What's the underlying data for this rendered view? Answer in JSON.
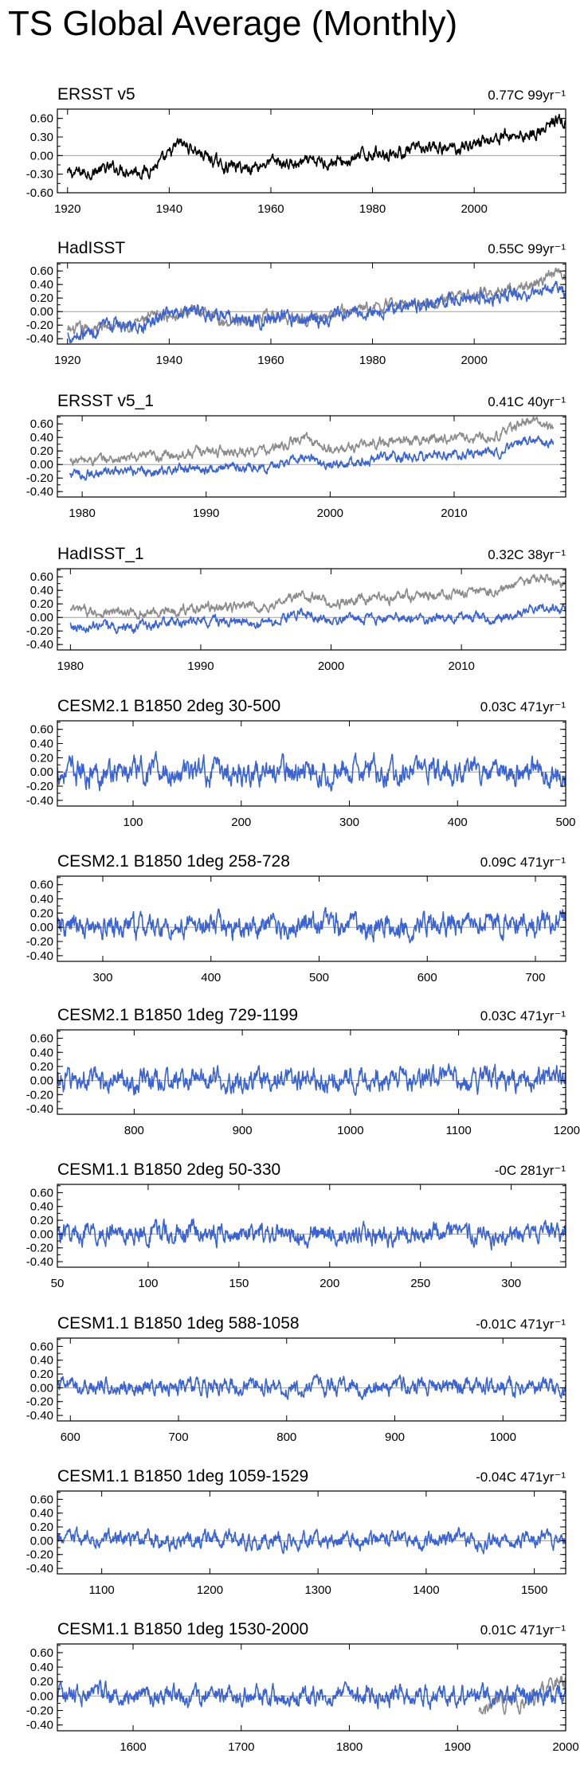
{
  "page": {
    "title": "TS Global Average (Monthly)"
  },
  "colors": {
    "observed": "#000000",
    "reference": "#8c8c8c",
    "model": "#3a63d6",
    "zeroline": "#a0a0a0"
  },
  "chart_data": [
    {
      "type": "line",
      "title": "ERSST v5",
      "trend_label": "0.77C 99yr⁻¹",
      "xlim": [
        1918,
        2018
      ],
      "ylim": [
        -0.6,
        0.75
      ],
      "yticks": [
        "0.60",
        "0.30",
        "0.00",
        "-0.30",
        "-0.60"
      ],
      "ytick_values": [
        0.6,
        0.3,
        0.0,
        -0.3,
        -0.6
      ],
      "xticks": [
        1920,
        1940,
        1960,
        1980,
        2000
      ],
      "series": [
        {
          "name": "ERSST v5",
          "color_key": "observed",
          "x": [
            1920,
            1925,
            1930,
            1935,
            1939,
            1942,
            1945,
            1950,
            1955,
            1960,
            1965,
            1970,
            1975,
            1980,
            1985,
            1990,
            1995,
            2000,
            2005,
            2010,
            2014,
            2016,
            2018
          ],
          "y": [
            -0.3,
            -0.25,
            -0.2,
            -0.25,
            -0.1,
            0.2,
            0.1,
            -0.15,
            -0.2,
            -0.1,
            -0.15,
            -0.1,
            -0.1,
            0.05,
            0.05,
            0.1,
            0.1,
            0.2,
            0.3,
            0.35,
            0.4,
            0.6,
            0.5
          ],
          "noise": 0.07
        }
      ]
    },
    {
      "type": "line",
      "title": "HadISST",
      "trend_label": "0.55C 99yr⁻¹",
      "xlim": [
        1918,
        2018
      ],
      "ylim": [
        -0.48,
        0.72
      ],
      "yticks": [
        "0.60",
        "0.40",
        "0.20",
        "0.00",
        "-0.20",
        "-0.40"
      ],
      "ytick_values": [
        0.6,
        0.4,
        0.2,
        0.0,
        -0.2,
        -0.4
      ],
      "xticks": [
        1920,
        1940,
        1960,
        1980,
        2000
      ],
      "series": [
        {
          "name": "ERSST v5",
          "color_key": "reference",
          "x": [
            1920,
            1930,
            1940,
            1945,
            1950,
            1960,
            1970,
            1980,
            1990,
            2000,
            2010,
            2016,
            2018
          ],
          "y": [
            -0.3,
            -0.2,
            -0.05,
            0.05,
            -0.15,
            -0.1,
            -0.05,
            0.05,
            0.15,
            0.25,
            0.35,
            0.55,
            0.5
          ],
          "noise": 0.06
        },
        {
          "name": "HadISST",
          "color_key": "model",
          "x": [
            1920,
            1925,
            1930,
            1935,
            1940,
            1945,
            1950,
            1955,
            1960,
            1970,
            1980,
            1990,
            2000,
            2010,
            2016,
            2018
          ],
          "y": [
            -0.35,
            -0.3,
            -0.2,
            -0.25,
            0.0,
            0.05,
            -0.1,
            -0.15,
            -0.1,
            -0.1,
            0.0,
            0.1,
            0.2,
            0.25,
            0.4,
            0.35
          ],
          "noise": 0.07
        }
      ]
    },
    {
      "type": "line",
      "title": "ERSST v5_1",
      "trend_label": "0.41C 40yr⁻¹",
      "xlim": [
        1978,
        2019
      ],
      "ylim": [
        -0.48,
        0.72
      ],
      "yticks": [
        "0.60",
        "0.40",
        "0.20",
        "0.00",
        "-0.20",
        "-0.40"
      ],
      "ytick_values": [
        0.6,
        0.4,
        0.2,
        0.0,
        -0.2,
        -0.4
      ],
      "xticks": [
        1980,
        1990,
        2000,
        2010
      ],
      "series": [
        {
          "name": "ERSST v5",
          "color_key": "reference",
          "x": [
            1979,
            1985,
            1990,
            1995,
            1998,
            2000,
            2005,
            2010,
            2013,
            2016,
            2018
          ],
          "y": [
            0.05,
            0.1,
            0.2,
            0.2,
            0.4,
            0.2,
            0.35,
            0.4,
            0.4,
            0.65,
            0.55
          ],
          "noise": 0.05
        },
        {
          "name": "ERSST v5_1",
          "color_key": "model",
          "x": [
            1979,
            1985,
            1990,
            1995,
            1998,
            2000,
            2005,
            2010,
            2013,
            2016,
            2018
          ],
          "y": [
            -0.15,
            -0.1,
            -0.05,
            -0.05,
            0.15,
            0.0,
            0.1,
            0.15,
            0.15,
            0.35,
            0.3
          ],
          "noise": 0.05
        }
      ]
    },
    {
      "type": "line",
      "title": "HadISST_1",
      "trend_label": "0.32C 38yr⁻¹",
      "xlim": [
        1979,
        2018
      ],
      "ylim": [
        -0.48,
        0.72
      ],
      "yticks": [
        "0.60",
        "0.40",
        "0.20",
        "0.00",
        "-0.20",
        "-0.40"
      ],
      "ytick_values": [
        0.6,
        0.4,
        0.2,
        0.0,
        -0.2,
        -0.4
      ],
      "xticks": [
        1980,
        1990,
        2000,
        2010
      ],
      "series": [
        {
          "name": "ERSST v5",
          "color_key": "reference",
          "x": [
            1980,
            1985,
            1990,
            1995,
            1998,
            2000,
            2005,
            2010,
            2013,
            2016,
            2018
          ],
          "y": [
            0.1,
            0.05,
            0.15,
            0.15,
            0.35,
            0.2,
            0.3,
            0.35,
            0.4,
            0.6,
            0.5
          ],
          "noise": 0.05
        },
        {
          "name": "HadISST_1",
          "color_key": "model",
          "x": [
            1980,
            1983,
            1985,
            1990,
            1995,
            1998,
            2000,
            2005,
            2010,
            2013,
            2016,
            2018
          ],
          "y": [
            -0.1,
            -0.15,
            -0.15,
            -0.05,
            -0.1,
            0.1,
            -0.05,
            0.0,
            0.0,
            0.0,
            0.15,
            0.1
          ],
          "noise": 0.05
        }
      ]
    },
    {
      "type": "line",
      "title": "CESM2.1 B1850 2deg 30-500",
      "trend_label": "0.03C 471yr⁻¹",
      "xlim": [
        30,
        500
      ],
      "ylim": [
        -0.48,
        0.72
      ],
      "yticks": [
        "0.60",
        "0.40",
        "0.20",
        "0.00",
        "-0.20",
        "-0.40"
      ],
      "ytick_values": [
        0.6,
        0.4,
        0.2,
        0.0,
        -0.2,
        -0.4
      ],
      "xticks": [
        100,
        200,
        300,
        400,
        500
      ],
      "series": [
        {
          "name": "CESM2.1 B1850 2deg",
          "color_key": "model",
          "x": [
            30,
            500
          ],
          "y": [
            0.0,
            0.02
          ],
          "noise": 0.12
        }
      ]
    },
    {
      "type": "line",
      "title": "CESM2.1 B1850 1deg 258-728",
      "trend_label": "0.09C 471yr⁻¹",
      "xlim": [
        258,
        728
      ],
      "ylim": [
        -0.48,
        0.72
      ],
      "yticks": [
        "0.60",
        "0.40",
        "0.20",
        "0.00",
        "-0.20",
        "-0.40"
      ],
      "ytick_values": [
        0.6,
        0.4,
        0.2,
        0.0,
        -0.2,
        -0.4
      ],
      "xticks": [
        300,
        400,
        500,
        600,
        700
      ],
      "series": [
        {
          "name": "CESM2.1 B1850 1deg",
          "color_key": "model",
          "x": [
            258,
            728
          ],
          "y": [
            -0.02,
            0.07
          ],
          "noise": 0.11
        }
      ]
    },
    {
      "type": "line",
      "title": "CESM2.1 B1850 1deg 729-1199",
      "trend_label": "0.03C 471yr⁻¹",
      "xlim": [
        729,
        1199
      ],
      "ylim": [
        -0.48,
        0.72
      ],
      "yticks": [
        "0.60",
        "0.40",
        "0.20",
        "0.00",
        "-0.20",
        "-0.40"
      ],
      "ytick_values": [
        0.6,
        0.4,
        0.2,
        0.0,
        -0.2,
        -0.4
      ],
      "xticks": [
        800,
        900,
        1000,
        1100,
        1200
      ],
      "series": [
        {
          "name": "CESM2.1 B1850 1deg",
          "color_key": "model",
          "x": [
            729,
            1199
          ],
          "y": [
            0.0,
            0.03
          ],
          "noise": 0.11
        }
      ]
    },
    {
      "type": "line",
      "title": "CESM1.1 B1850 2deg 50-330",
      "trend_label": "-0C 281yr⁻¹",
      "xlim": [
        50,
        330
      ],
      "ylim": [
        -0.48,
        0.72
      ],
      "yticks": [
        "0.60",
        "0.40",
        "0.20",
        "0.00",
        "-0.20",
        "-0.40"
      ],
      "ytick_values": [
        0.6,
        0.4,
        0.2,
        0.0,
        -0.2,
        -0.4
      ],
      "xticks": [
        50,
        100,
        150,
        200,
        250,
        300
      ],
      "series": [
        {
          "name": "CESM1.1 B1850 2deg",
          "color_key": "model",
          "x": [
            50,
            330
          ],
          "y": [
            0.01,
            0.0
          ],
          "noise": 0.1
        }
      ]
    },
    {
      "type": "line",
      "title": "CESM1.1 B1850 1deg 588-1058",
      "trend_label": "-0.01C 471yr⁻¹",
      "xlim": [
        588,
        1058
      ],
      "ylim": [
        -0.48,
        0.72
      ],
      "yticks": [
        "0.60",
        "0.40",
        "0.20",
        "0.00",
        "-0.20",
        "-0.40"
      ],
      "ytick_values": [
        0.6,
        0.4,
        0.2,
        0.0,
        -0.2,
        -0.4
      ],
      "xticks": [
        600,
        700,
        800,
        900,
        1000
      ],
      "series": [
        {
          "name": "CESM1.1 B1850 1deg",
          "color_key": "model",
          "x": [
            588,
            1058
          ],
          "y": [
            0.02,
            0.01
          ],
          "noise": 0.08
        }
      ]
    },
    {
      "type": "line",
      "title": "CESM1.1 B1850 1deg 1059-1529",
      "trend_label": "-0.04C 471yr⁻¹",
      "xlim": [
        1059,
        1529
      ],
      "ylim": [
        -0.48,
        0.72
      ],
      "yticks": [
        "0.60",
        "0.40",
        "0.20",
        "0.00",
        "-0.20",
        "-0.40"
      ],
      "ytick_values": [
        0.6,
        0.4,
        0.2,
        0.0,
        -0.2,
        -0.4
      ],
      "xticks": [
        1100,
        1200,
        1300,
        1400,
        1500
      ],
      "series": [
        {
          "name": "CESM1.1 B1850 1deg",
          "color_key": "model",
          "x": [
            1059,
            1529
          ],
          "y": [
            0.03,
            -0.01
          ],
          "noise": 0.08
        }
      ]
    },
    {
      "type": "line",
      "title": "CESM1.1 B1850 1deg 1530-2000",
      "trend_label": "0.01C 471yr⁻¹",
      "xlim": [
        1530,
        2000
      ],
      "ylim": [
        -0.48,
        0.72
      ],
      "yticks": [
        "0.60",
        "0.40",
        "0.20",
        "0.00",
        "-0.20",
        "-0.40"
      ],
      "ytick_values": [
        0.6,
        0.4,
        0.2,
        0.0,
        -0.2,
        -0.4
      ],
      "xticks": [
        1600,
        1700,
        1800,
        1900,
        2000
      ],
      "series": [
        {
          "name": "ERSST v5",
          "color_key": "reference",
          "x": [
            1920,
            1930,
            1940,
            1950,
            1960,
            1970,
            1980,
            1990,
            2000
          ],
          "y": [
            -0.3,
            -0.2,
            0.0,
            -0.1,
            -0.1,
            -0.05,
            0.05,
            0.15,
            0.25
          ],
          "noise": 0.08
        },
        {
          "name": "CESM1.1 B1850 1deg",
          "color_key": "model",
          "x": [
            1530,
            2000
          ],
          "y": [
            0.0,
            0.01
          ],
          "noise": 0.09
        }
      ]
    }
  ]
}
